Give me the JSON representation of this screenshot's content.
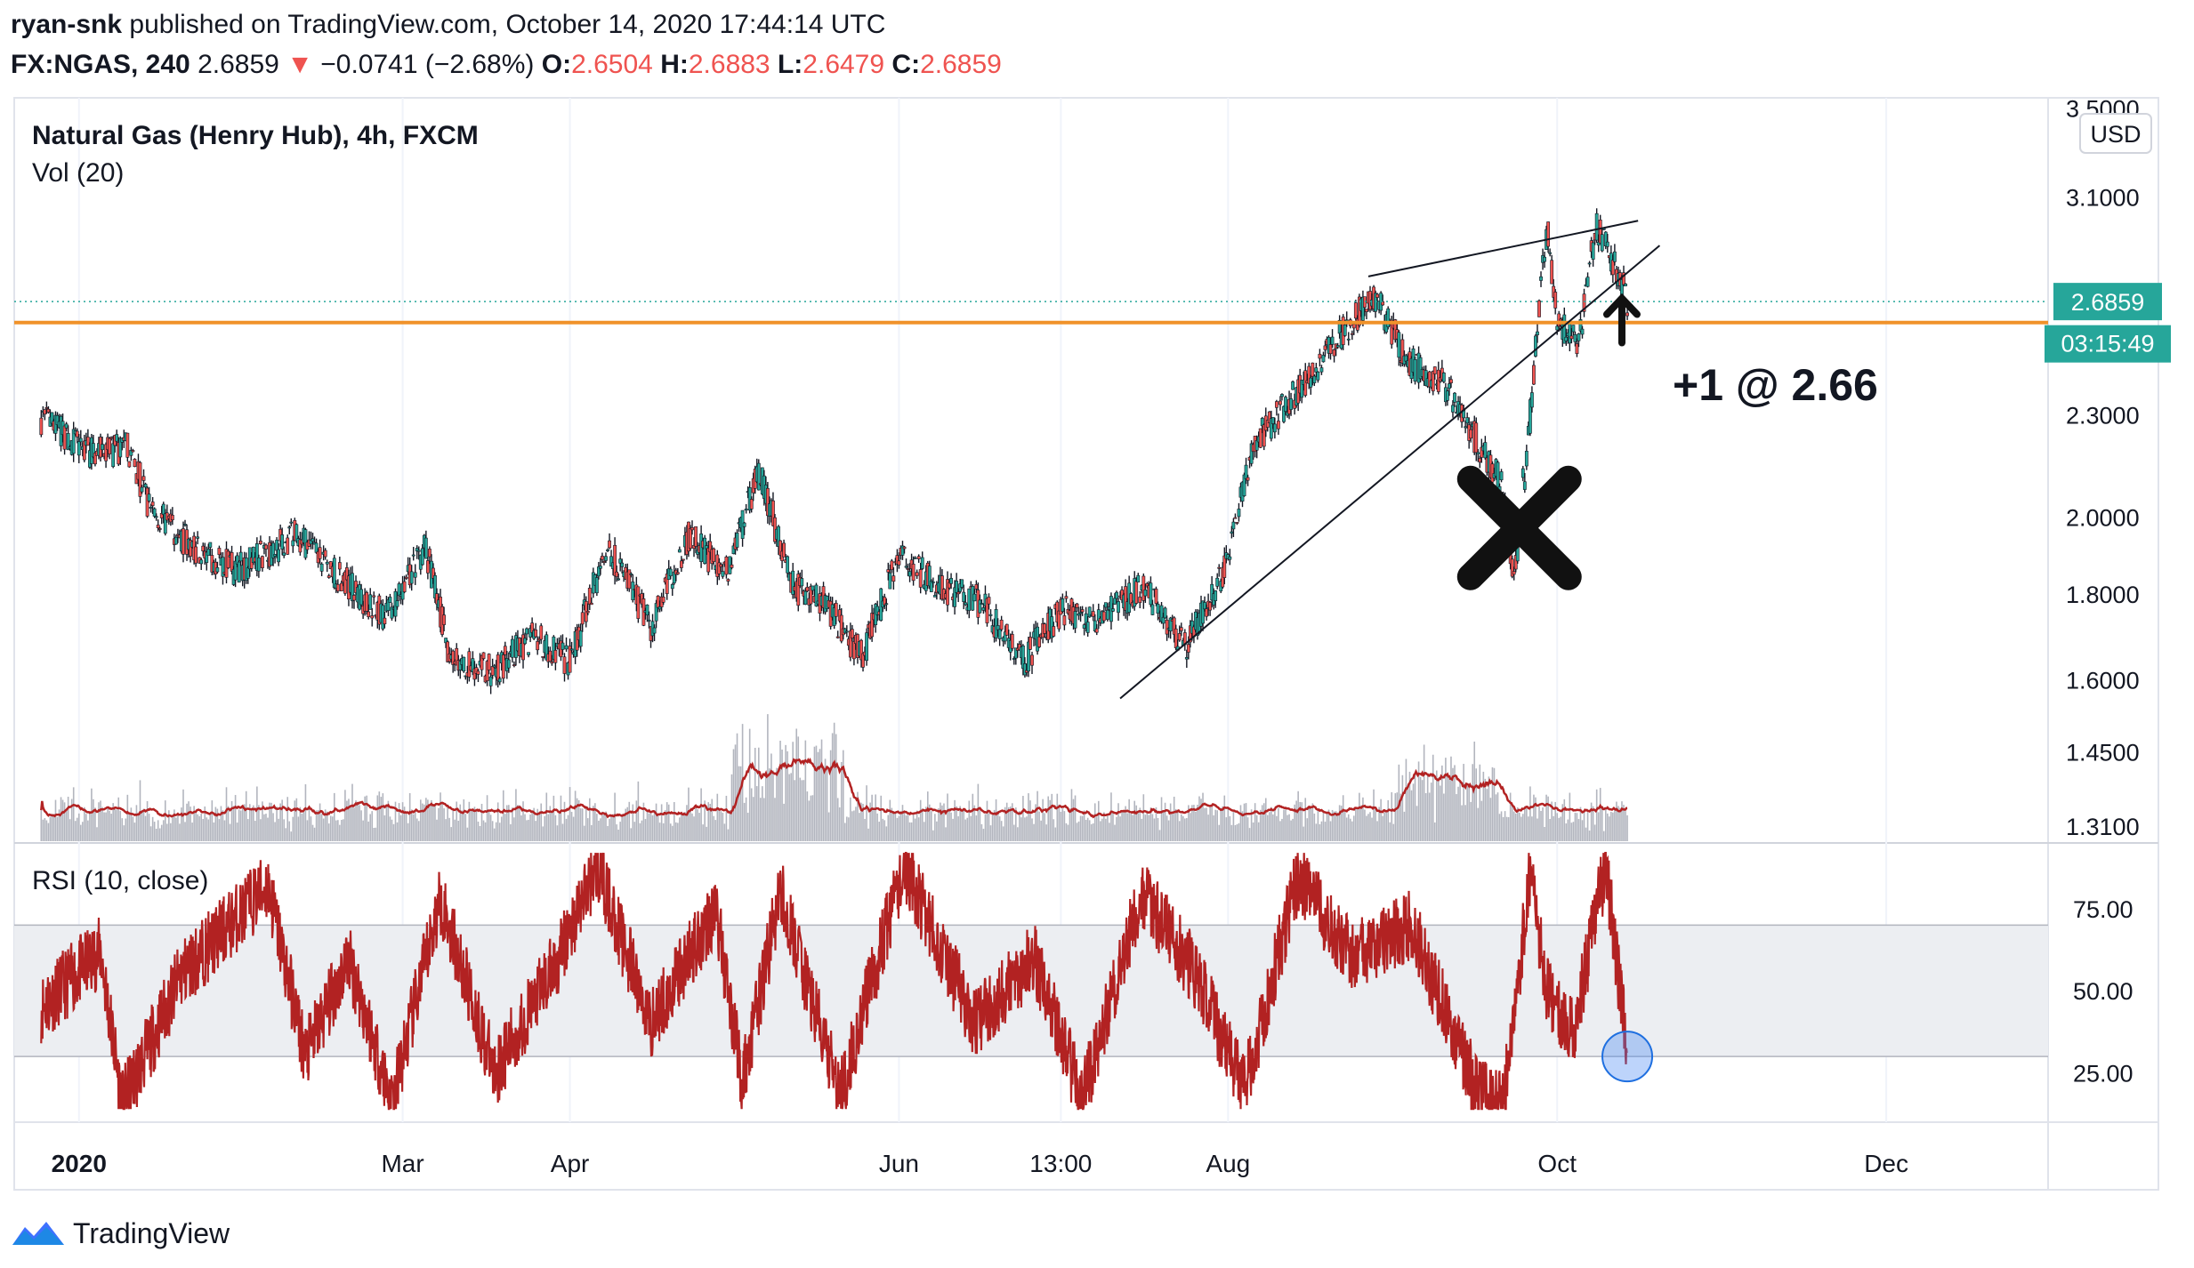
{
  "header": {
    "author": "ryan-snk",
    "published_text": "published on TradingView.com, October 14, 2020 17:44:14 UTC",
    "symbol": "FX:NGAS, 240",
    "last": "2.6859",
    "arrow": "▼",
    "change": "−0.0741 (−2.68%)",
    "o_label": "O:",
    "o_value": "2.6504",
    "h_label": "H:",
    "h_value": "2.6883",
    "l_label": "L:",
    "l_value": "2.6479",
    "c_label": "C:",
    "c_value": "2.6859"
  },
  "footer": {
    "brand": "TradingView"
  },
  "colors": {
    "up": "#26a69a",
    "down": "#ef5350",
    "candle": "#131722",
    "hline": "#f0922a",
    "rsi": "#b22222",
    "vol": "#b2b5be",
    "vol_ma": "#b22222",
    "accent": "#26a69a",
    "rsi_band": "#eceef2"
  },
  "chart_data": [
    {
      "type": "candlestick",
      "title": "Natural Gas (Henry Hub), 4h, FXCM",
      "currency": "USD",
      "scale": "log",
      "ylim": [
        1.28,
        3.55
      ],
      "y_ticks": [
        "3.5000",
        "3.1000",
        "2.3000",
        "2.0000",
        "1.8000",
        "1.6000",
        "1.4500",
        "1.3100"
      ],
      "y_tick_values": [
        3.5,
        3.1,
        2.3,
        2.0,
        1.8,
        1.6,
        1.45,
        1.31
      ],
      "x_ticks": [
        "2020",
        "Mar",
        "Apr",
        "Jun",
        "13:00",
        "Aug",
        "Oct",
        "Dec"
      ],
      "x_tick_dates": [
        "2020-01-01",
        "2020-03-01",
        "2020-04-01",
        "2020-06-01",
        "2020-07-01",
        "2020-08-01",
        "2020-10-01",
        "2020-12-01"
      ],
      "last_price_label": "2.6859",
      "countdown_label": "03:15:49",
      "last_price": 2.6859,
      "horizontal_level": 2.61,
      "price_anchors": {
        "dates": [
          "2019-12-25",
          "2020-01-03",
          "2020-01-10",
          "2020-01-14",
          "2020-01-22",
          "2020-01-30",
          "2020-02-10",
          "2020-02-20",
          "2020-02-27",
          "2020-03-05",
          "2020-03-10",
          "2020-03-18",
          "2020-03-25",
          "2020-04-01",
          "2020-04-08",
          "2020-04-16",
          "2020-04-23",
          "2020-04-30",
          "2020-05-06",
          "2020-05-12",
          "2020-05-18",
          "2020-05-25",
          "2020-06-01",
          "2020-06-08",
          "2020-06-16",
          "2020-06-24",
          "2020-07-01",
          "2020-07-08",
          "2020-07-16",
          "2020-07-24",
          "2020-07-31",
          "2020-08-06",
          "2020-08-14",
          "2020-08-21",
          "2020-08-28",
          "2020-09-03",
          "2020-09-10",
          "2020-09-16",
          "2020-09-21",
          "2020-09-23",
          "2020-09-26",
          "2020-09-29",
          "2020-10-01",
          "2020-10-05",
          "2020-10-08",
          "2020-10-12",
          "2020-10-14"
        ],
        "values": [
          2.29,
          2.18,
          2.2,
          2.03,
          1.92,
          1.86,
          1.95,
          1.82,
          1.74,
          1.92,
          1.64,
          1.62,
          1.7,
          1.64,
          1.92,
          1.72,
          1.95,
          1.85,
          2.13,
          1.82,
          1.78,
          1.65,
          1.9,
          1.82,
          1.78,
          1.64,
          1.76,
          1.74,
          1.82,
          1.67,
          1.85,
          2.22,
          2.38,
          2.55,
          2.71,
          2.48,
          2.4,
          2.22,
          2.08,
          1.83,
          2.3,
          2.97,
          2.6,
          2.55,
          2.98,
          2.8,
          2.686
        ]
      },
      "annotations": {
        "label": "+1 @ 2.66",
        "wedge_upper": [
          [
            "2020-08-27",
            2.78
          ],
          [
            "2020-10-16",
            3.0
          ]
        ],
        "wedge_lower": [
          [
            "2020-07-12",
            1.56
          ],
          [
            "2020-10-20",
            2.9
          ]
        ],
        "x_mark": [
          "2020-09-24",
          1.97
        ],
        "arrow_at": [
          "2020-10-13",
          2.62
        ],
        "circle_at": [
          "2020-10-14",
          30
        ]
      }
    },
    {
      "type": "bar",
      "title": "Vol (20)",
      "series": [
        {
          "name": "Vol"
        },
        {
          "name": "MA(20)"
        }
      ]
    },
    {
      "type": "line",
      "title": "RSI (10, close)",
      "ylim": [
        10,
        95
      ],
      "y_ticks": [
        "75.00",
        "50.00",
        "25.00"
      ],
      "y_tick_values": [
        75,
        50,
        25
      ],
      "band": [
        30,
        70
      ],
      "rsi_anchors": {
        "dates": [
          "2019-12-25",
          "2020-01-05",
          "2020-01-09",
          "2020-01-20",
          "2020-02-05",
          "2020-02-12",
          "2020-02-20",
          "2020-02-28",
          "2020-03-08",
          "2020-03-18",
          "2020-03-30",
          "2020-04-06",
          "2020-04-16",
          "2020-04-28",
          "2020-05-03",
          "2020-05-10",
          "2020-05-21",
          "2020-06-02",
          "2020-06-15",
          "2020-06-26",
          "2020-07-05",
          "2020-07-16",
          "2020-07-26",
          "2020-08-04",
          "2020-08-14",
          "2020-08-24",
          "2020-09-04",
          "2020-09-16",
          "2020-09-21",
          "2020-09-26",
          "2020-09-29",
          "2020-10-04",
          "2020-10-10",
          "2020-10-14"
        ],
        "values": [
          45,
          62,
          15,
          55,
          82,
          30,
          60,
          16,
          78,
          25,
          60,
          88,
          40,
          75,
          22,
          80,
          18,
          88,
          40,
          60,
          17,
          80,
          55,
          20,
          85,
          60,
          70,
          20,
          15,
          85,
          50,
          38,
          88,
          32
        ]
      }
    }
  ]
}
